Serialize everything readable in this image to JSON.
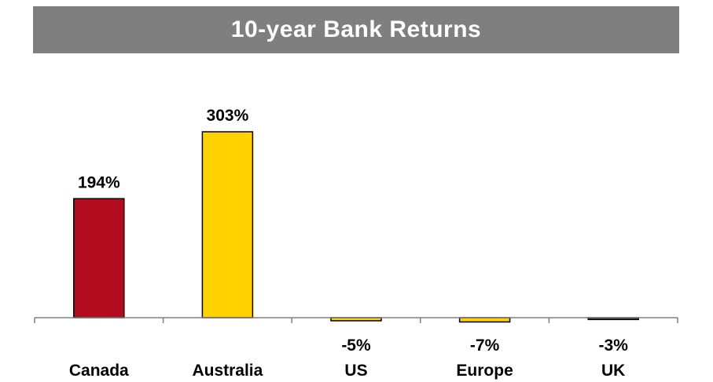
{
  "chart_data": {
    "type": "bar",
    "title": "10-year Bank Returns",
    "categories": [
      "Canada",
      "Australia",
      "US",
      "Europe",
      "UK"
    ],
    "values": [
      194,
      303,
      -5,
      -7,
      -3
    ],
    "value_labels": [
      "194%",
      "303%",
      "-5%",
      "-7%",
      "-3%"
    ],
    "colors": [
      "#b10d1f",
      "#ffd200",
      "#ffd200",
      "#ffd200",
      "#404040"
    ],
    "ylim": [
      -7,
      303
    ],
    "grid": false,
    "legend": "none"
  }
}
